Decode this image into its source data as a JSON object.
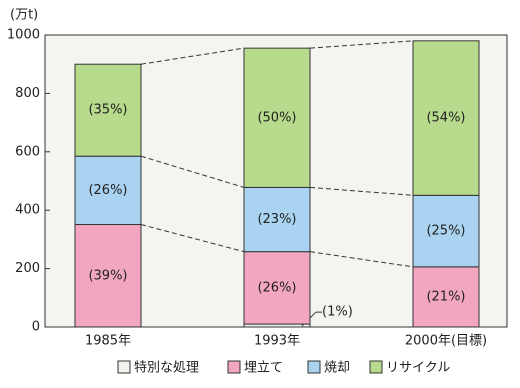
{
  "chart_data": {
    "type": "stacked-bar",
    "y_label": "(万t)",
    "categories": [
      "1985年",
      "1993年",
      "2000年(目標)"
    ],
    "ylim": [
      0,
      1000
    ],
    "yticks": [
      0,
      200,
      400,
      600,
      800,
      1000
    ],
    "series": [
      {
        "name": "特別な処理",
        "color": "#f2f2ee",
        "values": [
          0,
          10,
          0
        ],
        "value_labels": [
          null,
          "(1%)",
          null
        ]
      },
      {
        "name": "埋立て",
        "color": "#f3a6c2",
        "values": [
          351,
          248,
          206
        ],
        "value_labels": [
          "(39%)",
          "(26%)",
          "(21%)"
        ]
      },
      {
        "name": "焼却",
        "color": "#a9d3f0",
        "values": [
          234,
          220,
          245
        ],
        "value_labels": [
          "(26%)",
          "(23%)",
          "(25%)"
        ]
      },
      {
        "name": "リサイクル",
        "color": "#b7da8c",
        "values": [
          315,
          477,
          529
        ],
        "value_labels": [
          "(35%)",
          "(50%)",
          "(54%)"
        ]
      }
    ]
  }
}
